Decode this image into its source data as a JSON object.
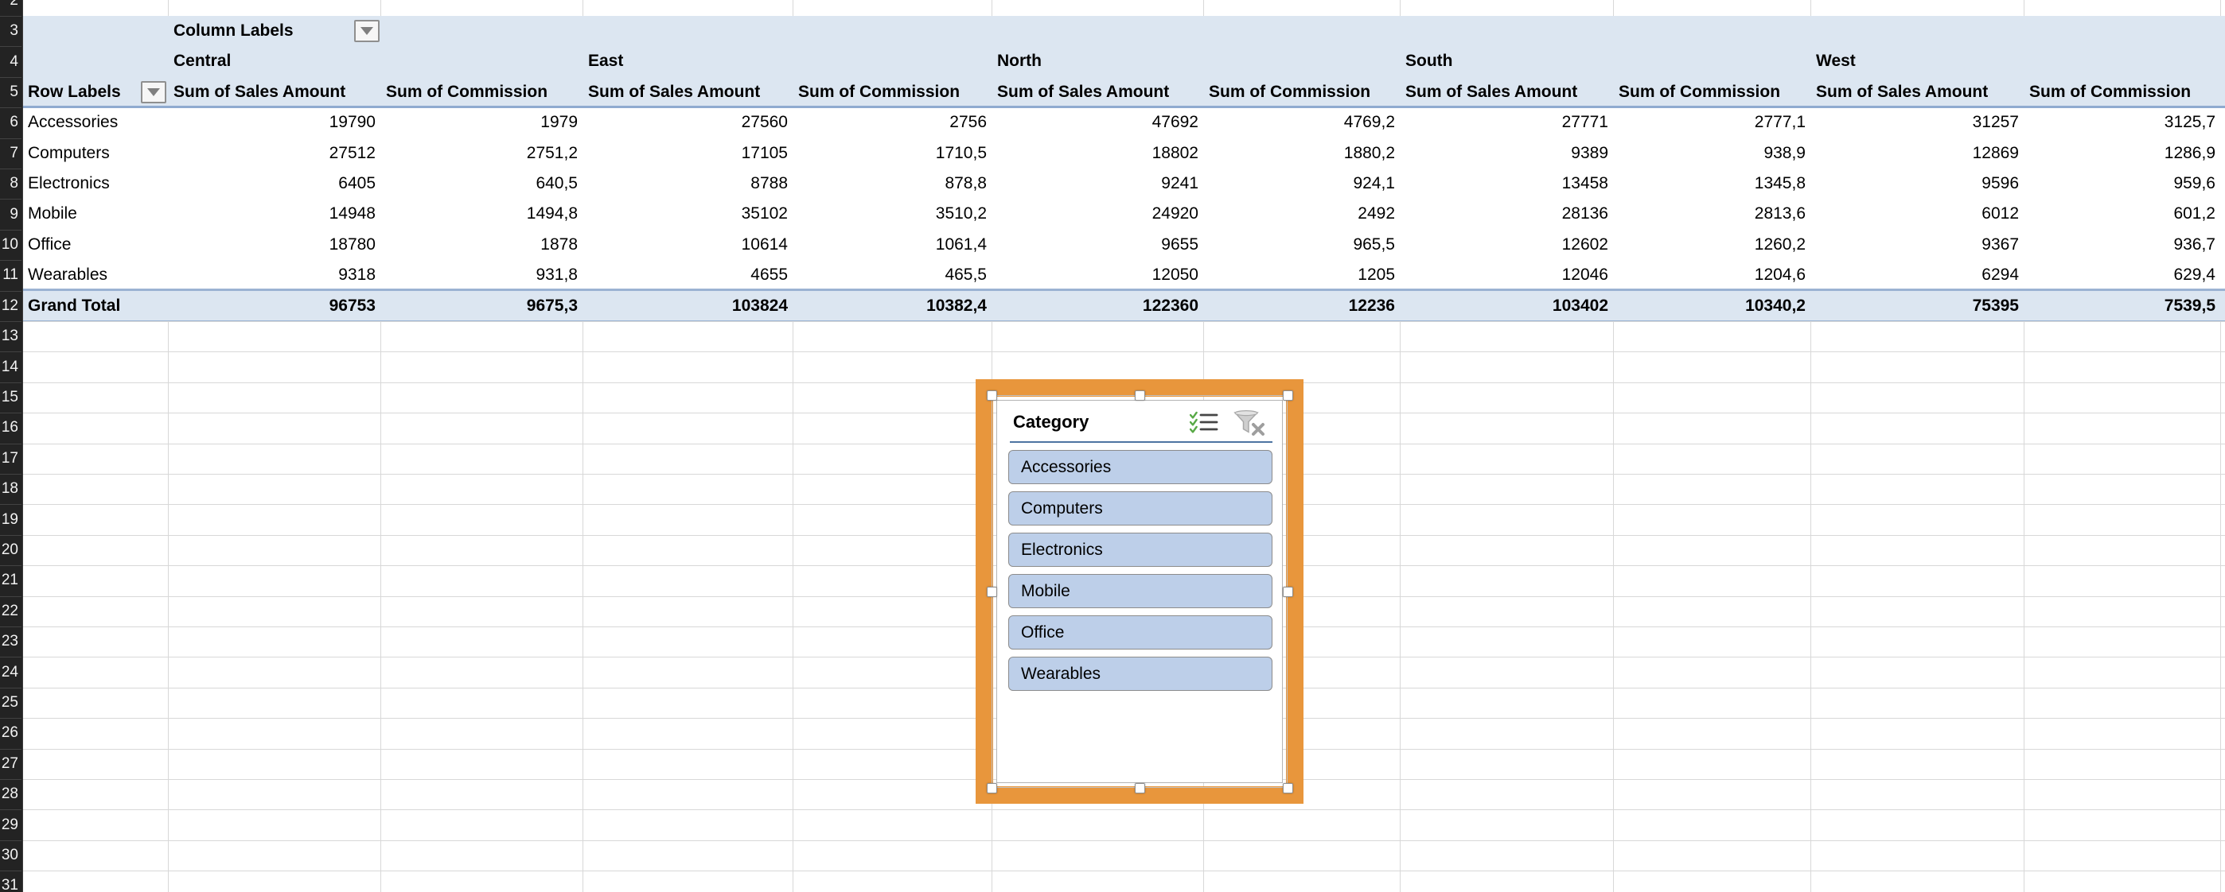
{
  "sheet": {
    "visible_rows": [
      "2",
      "3",
      "4",
      "5",
      "6",
      "7",
      "8",
      "9",
      "10",
      "11",
      "12",
      "13",
      "14",
      "15",
      "16",
      "17",
      "18",
      "19",
      "20",
      "21",
      "22",
      "23",
      "24",
      "25",
      "26",
      "27",
      "28",
      "29",
      "30",
      "31"
    ],
    "colors": {
      "header_fill": "#dce6f1",
      "pivot_border_blue": "#8fabd0",
      "gridline": "#d8d8d8",
      "row_header_bg": "#232323",
      "slicer_button_fill": "#bdcfe9",
      "selection_orange": "#e8963c"
    },
    "pivot": {
      "column_filter_label": "Column Labels",
      "row_filter_label": "Row Labels",
      "filter_icon": "dropdown-arrow-icon",
      "regions": [
        "Central",
        "East",
        "North",
        "South",
        "West"
      ],
      "measures": [
        "Sum of Sales Amount",
        "Sum of Commission"
      ],
      "rows": [
        {
          "label": "Accessories",
          "values": [
            "19790",
            "1979",
            "27560",
            "2756",
            "47692",
            "4769,2",
            "27771",
            "2777,1",
            "31257",
            "3125,7"
          ]
        },
        {
          "label": "Computers",
          "values": [
            "27512",
            "2751,2",
            "17105",
            "1710,5",
            "18802",
            "1880,2",
            "9389",
            "938,9",
            "12869",
            "1286,9"
          ]
        },
        {
          "label": "Electronics",
          "values": [
            "6405",
            "640,5",
            "8788",
            "878,8",
            "9241",
            "924,1",
            "13458",
            "1345,8",
            "9596",
            "959,6"
          ]
        },
        {
          "label": "Mobile",
          "values": [
            "14948",
            "1494,8",
            "35102",
            "3510,2",
            "24920",
            "2492",
            "28136",
            "2813,6",
            "6012",
            "601,2"
          ]
        },
        {
          "label": "Office",
          "values": [
            "18780",
            "1878",
            "10614",
            "1061,4",
            "9655",
            "965,5",
            "12602",
            "1260,2",
            "9367",
            "936,7"
          ]
        },
        {
          "label": "Wearables",
          "values": [
            "9318",
            "931,8",
            "4655",
            "465,5",
            "12050",
            "1205",
            "12046",
            "1204,6",
            "6294",
            "629,4"
          ]
        }
      ],
      "grand_total": {
        "label": "Grand Total",
        "values": [
          "96753",
          "9675,3",
          "103824",
          "10382,4",
          "122360",
          "12236",
          "103402",
          "10340,2",
          "75395",
          "7539,5"
        ]
      }
    },
    "slicer": {
      "title": "Category",
      "items": [
        "Accessories",
        "Computers",
        "Electronics",
        "Mobile",
        "Office",
        "Wearables"
      ],
      "icons": [
        "multi-select-icon",
        "clear-filter-icon"
      ]
    }
  }
}
